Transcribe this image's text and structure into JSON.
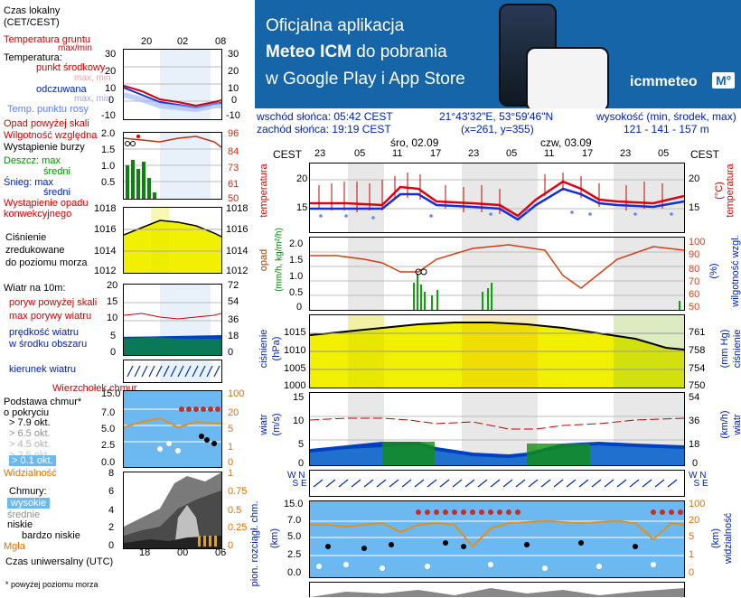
{
  "legend": {
    "local_time": "Czas lokalny\n(CET/CEST)",
    "soil_temp": "Temperatura gruntu",
    "max_min": "max/min",
    "temperature": "Temperatura:",
    "mid_point": "punkt środkowy",
    "max_min2": "max, min",
    "feels": "odczuwana",
    "max_min3": "max, min",
    "dew": "Temp. punktu rosy",
    "precip_above": "Opad powyżej skali",
    "humidity": "Wilgotność względna",
    "storm": "Wystąpienie burzy",
    "rain_max": "Deszcz: max",
    "rain_mid": "średni",
    "snow_max": "Śnieg:  max",
    "snow_mid": "średni",
    "conv": "Wystąpienie opadu\nkonwekcyjnego",
    "pressure": "Ciśnienie\nzredukowane\ndo poziomu morza",
    "wind_10m": "Wiatr na 10m:",
    "gust_above": "poryw powyżej skali",
    "gust_max": "max porywy wiatru",
    "wind_speed": "prędkość wiatru\nw środku obszaru",
    "wind_dir": "kierunek wiatru",
    "cloud_top": "Wierzchołek chmur",
    "cloud_base": "Podstawa chmur*\no pokryciu",
    "o79": "> 7.9 okt.",
    "o65": "> 6.5 okt.",
    "o45": "> 4.5 okt.",
    "o25": "> 2.5 okt.",
    "o01": "> 0.1 okt.",
    "visibility": "Widzialność",
    "clouds": "Chmury:",
    "high": "wysokie",
    "mid": "średnie",
    "low": "niskie",
    "very_low": "bardzo niskie",
    "fog": "Mgła",
    "utc": "Czas uniwersalny (UTC)",
    "footnote": "* powyżej poziomu morza",
    "time_top": [
      "20",
      "02",
      "08"
    ],
    "time_bottom": [
      "18",
      "00",
      "06"
    ]
  },
  "banner": {
    "line1": "Oficjalna aplikacja",
    "line2": "Meteo ICM",
    "line2b": " do pobrania",
    "line3": "w Google Play i App Store",
    "brand": "icmmeteo",
    "brand_badge": "M°"
  },
  "info": {
    "sunrise": "wschód słońca: 05:42 CEST",
    "sunset": "zachód słońca: 19:19 CEST",
    "coords": "21°43'32\"E, 53°59'46\"N",
    "grid": "(x=261, y=355)",
    "elev_label": "wysokość (min, środek, max)",
    "elev": "121 - 141 - 157 m"
  },
  "main": {
    "cest": "CEST",
    "day1": "śro, 02.09",
    "day2": "czw, 03.09",
    "hours": [
      "23",
      "05",
      "11",
      "17",
      "23",
      "05",
      "11",
      "17",
      "23",
      "05"
    ],
    "temp_left": "temperatura",
    "temp_unit": "(°C)",
    "temp_right": "temperatura",
    "temp_ticks": [
      "20",
      "15"
    ],
    "precip_left": "opad",
    "precip_unit_l": "(mm/h, kg/m²/h)",
    "precip_right": "wilgotność wzgl.",
    "precip_unit_r": "(%)",
    "precip_ticks_l": [
      "2.0",
      "1.5",
      "1.0",
      "0.5",
      "0"
    ],
    "precip_ticks_r": [
      "100",
      "90",
      "80",
      "70",
      "60",
      "50"
    ],
    "press_left": "ciśnienie",
    "press_unit_l": "(hPa)",
    "press_right": "ciśnienie",
    "press_unit_r": "(mm Hg)",
    "press_ticks_l": [
      "1015",
      "1010",
      "1005",
      "1000"
    ],
    "press_ticks_r": [
      "761",
      "758",
      "754",
      "750"
    ],
    "wind_left": "wiatr",
    "wind_unit_l": "(m/s)",
    "wind_right": "wiatr",
    "wind_unit_r": "(km/h)",
    "wind_ticks_l": [
      "15",
      "10",
      "5",
      "0"
    ],
    "wind_ticks_r": [
      "54",
      "36",
      "18",
      "0"
    ],
    "cloud_left": "pion. rozciągł. chm.",
    "cloud_unit_l": "(km)",
    "cloud_right": "widzialność",
    "cloud_unit_r": "(km)",
    "cloud_ticks_l": [
      "15.0",
      "7.0",
      "5.0",
      "2.5",
      "0.0"
    ],
    "cloud_ticks_r": [
      "100",
      "20",
      "5",
      "1",
      "0"
    ]
  },
  "colors": {
    "banner_bg": "#1565a8",
    "temp_red": "#e00010",
    "temp_blue": "#1030e0",
    "pressure_yellow": "#f0f000",
    "wind_green": "#10a010",
    "wind_blue": "#0040c0",
    "sky_blue": "#6cb8f0",
    "humidity_orange": "#d04010"
  }
}
